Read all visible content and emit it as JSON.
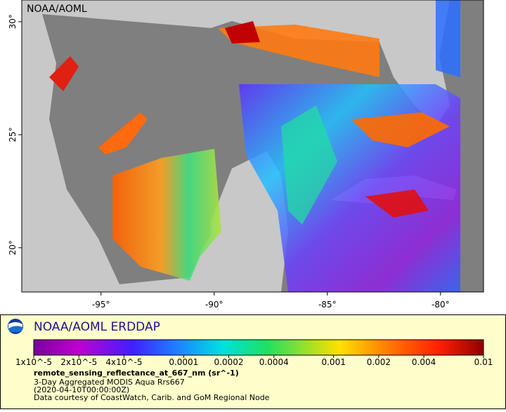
{
  "map": {
    "label": "NOAA/AOML",
    "lon_range": [
      -98.5,
      -78.1
    ],
    "lat_range": [
      18.04,
      30.96
    ],
    "lon_ticks": [
      {
        "value": -95,
        "label": "-95°"
      },
      {
        "value": -90,
        "label": "-90°"
      },
      {
        "value": -85,
        "label": "-85°"
      },
      {
        "value": -80,
        "label": "-80°"
      }
    ],
    "lat_ticks": [
      {
        "value": 20,
        "label": "20°"
      },
      {
        "value": 25,
        "label": "25°"
      },
      {
        "value": 30,
        "label": "30°"
      }
    ]
  },
  "legend": {
    "title": "NOAA/AOML ERDDAP",
    "scale": "log",
    "range": [
      1e-05,
      0.01
    ],
    "ticks": [
      {
        "value": 1e-05,
        "label": "1x10^-5"
      },
      {
        "value": 2e-05,
        "label": "2x10^-5"
      },
      {
        "value": 4e-05,
        "label": "4x10^-5"
      },
      {
        "value": 0.0001,
        "label": "0.0001"
      },
      {
        "value": 0.0002,
        "label": "0.0002"
      },
      {
        "value": 0.0004,
        "label": "0.0004"
      },
      {
        "value": 0.001,
        "label": "0.001"
      },
      {
        "value": 0.002,
        "label": "0.002"
      },
      {
        "value": 0.004,
        "label": "0.004"
      },
      {
        "value": 0.01,
        "label": "0.01"
      }
    ],
    "variable": "remote_sensing_reflectance_at_667_nm (sr^-1)",
    "lines": [
      "3-Day Aggregated MODIS Aqua Rrs667",
      "(2020-04-10T00:00:00Z)",
      "Data courtesy of CoastWatch, Carib. and GoM Regional Node"
    ]
  }
}
